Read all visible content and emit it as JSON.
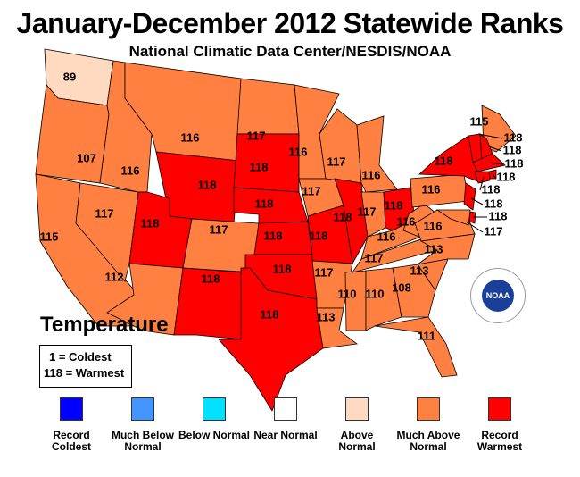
{
  "title": "January-December 2012 Statewide Ranks",
  "subtitle": "National Climatic Data Center/NESDIS/NOAA",
  "variable": "Temperature",
  "key": {
    "coldest": "1 = Coldest",
    "warmest": "118 = Warmest"
  },
  "logo": "NOAA",
  "legend": [
    {
      "label": "Record Coldest",
      "color": "#0000ff"
    },
    {
      "label": "Much Below Normal",
      "color": "#4496ff"
    },
    {
      "label": "Below Normal",
      "color": "#00e0ff"
    },
    {
      "label": "Near Normal",
      "color": "#ffffff"
    },
    {
      "label": "Above Normal",
      "color": "#ffd9c0"
    },
    {
      "label": "Much Above Normal",
      "color": "#ff8040"
    },
    {
      "label": "Record Warmest",
      "color": "#ff0000"
    }
  ],
  "states": [
    {
      "abbr": "WA",
      "rank": "89",
      "category": 4
    },
    {
      "abbr": "OR",
      "rank": "107",
      "category": 5
    },
    {
      "abbr": "CA",
      "rank": "115",
      "category": 5
    },
    {
      "abbr": "NV",
      "rank": "117",
      "category": 5
    },
    {
      "abbr": "ID",
      "rank": "116",
      "category": 5
    },
    {
      "abbr": "MT",
      "rank": "116",
      "category": 5
    },
    {
      "abbr": "WY",
      "rank": "118",
      "category": 6
    },
    {
      "abbr": "UT",
      "rank": "118",
      "category": 6
    },
    {
      "abbr": "CO",
      "rank": "117",
      "category": 5
    },
    {
      "abbr": "AZ",
      "rank": "112",
      "category": 5
    },
    {
      "abbr": "NM",
      "rank": "118",
      "category": 6
    },
    {
      "abbr": "ND",
      "rank": "117",
      "category": 5
    },
    {
      "abbr": "SD",
      "rank": "118",
      "category": 6
    },
    {
      "abbr": "NE",
      "rank": "118",
      "category": 6
    },
    {
      "abbr": "KS",
      "rank": "118",
      "category": 6
    },
    {
      "abbr": "OK",
      "rank": "118",
      "category": 6
    },
    {
      "abbr": "TX",
      "rank": "118",
      "category": 6
    },
    {
      "abbr": "MN",
      "rank": "116",
      "category": 5
    },
    {
      "abbr": "IA",
      "rank": "117",
      "category": 5
    },
    {
      "abbr": "MO",
      "rank": "118",
      "category": 6
    },
    {
      "abbr": "AR",
      "rank": "117",
      "category": 5
    },
    {
      "abbr": "LA",
      "rank": "113",
      "category": 5
    },
    {
      "abbr": "WI",
      "rank": "117",
      "category": 5
    },
    {
      "abbr": "IL",
      "rank": "118",
      "category": 6
    },
    {
      "abbr": "MS",
      "rank": "110",
      "category": 5
    },
    {
      "abbr": "MI",
      "rank": "116",
      "category": 5
    },
    {
      "abbr": "IN",
      "rank": "117",
      "category": 5
    },
    {
      "abbr": "KY",
      "rank": "116",
      "category": 5
    },
    {
      "abbr": "TN",
      "rank": "117",
      "category": 5
    },
    {
      "abbr": "AL",
      "rank": "110",
      "category": 5
    },
    {
      "abbr": "GA",
      "rank": "108",
      "category": 5
    },
    {
      "abbr": "FL",
      "rank": "111",
      "category": 5
    },
    {
      "abbr": "OH",
      "rank": "118",
      "category": 6
    },
    {
      "abbr": "WV",
      "rank": "116",
      "category": 5
    },
    {
      "abbr": "VA",
      "rank": "116",
      "category": 5
    },
    {
      "abbr": "NC",
      "rank": "113",
      "category": 5
    },
    {
      "abbr": "SC",
      "rank": "113",
      "category": 5
    },
    {
      "abbr": "PA",
      "rank": "116",
      "category": 5
    },
    {
      "abbr": "NY",
      "rank": "118",
      "category": 6
    },
    {
      "abbr": "ME",
      "rank": "115",
      "category": 5
    },
    {
      "abbr": "VT",
      "rank": "118",
      "category": 6
    },
    {
      "abbr": "NH",
      "rank": "118",
      "category": 6
    },
    {
      "abbr": "MA",
      "rank": "118",
      "category": 6
    },
    {
      "abbr": "RI",
      "rank": "118",
      "category": 6
    },
    {
      "abbr": "CT",
      "rank": "118",
      "category": 6
    },
    {
      "abbr": "NJ",
      "rank": "118",
      "category": 6
    },
    {
      "abbr": "DE",
      "rank": "118",
      "category": 6
    },
    {
      "abbr": "MD",
      "rank": "117",
      "category": 5
    }
  ]
}
